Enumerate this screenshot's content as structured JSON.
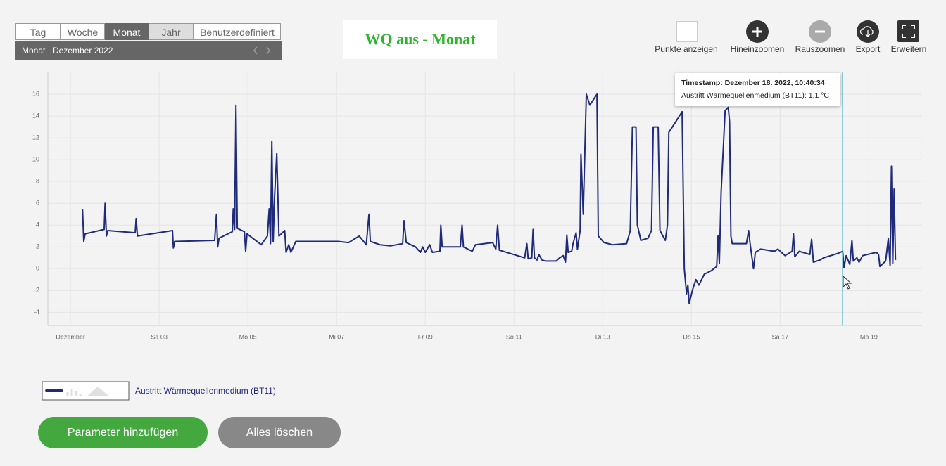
{
  "tabs": [
    "Tag",
    "Woche",
    "Monat",
    "Jahr",
    "Benutzerdefiniert"
  ],
  "period": {
    "label": "Monat",
    "value": "Dezember 2022"
  },
  "title": "WQ aus - Monat",
  "toolbar": [
    "Punkte anzeigen",
    "Hineinzoomen",
    "Rauszoomen",
    "Export",
    "Erweitern"
  ],
  "tooltip": {
    "timestamp": "Timestamp: Dezember 18. 2022, 10:40:34",
    "value": "Austritt Wärmequellenmedium (BT11): 1.1 °C"
  },
  "buttons": [
    "Parameter hinzufügen",
    "Alles löschen"
  ],
  "chart_data": {
    "type": "line",
    "grid": true,
    "xlim": [
      0.49,
      20.2
    ],
    "ylim": [
      -5.2,
      18
    ],
    "xticks": [
      {
        "value": 1,
        "label": "Dezember"
      },
      {
        "value": 3,
        "label": "Sa 03"
      },
      {
        "value": 5,
        "label": "Mo 05"
      },
      {
        "value": 7,
        "label": "Mi 07"
      },
      {
        "value": 9,
        "label": "Fr 09"
      },
      {
        "value": 11,
        "label": "So 11"
      },
      {
        "value": 13,
        "label": "Di 13"
      },
      {
        "value": 15,
        "label": "Do 15"
      },
      {
        "value": 17,
        "label": "Sa 17"
      },
      {
        "value": 19,
        "label": "Mo 19"
      }
    ],
    "yticks": [
      -4,
      -2,
      0,
      2,
      4,
      6,
      8,
      10,
      12,
      14,
      16
    ],
    "series": [
      {
        "name": "Austritt Wärmequellenmedium (BT11)",
        "color": "#1f2a7a",
        "x": [
          1.27,
          1.3,
          1.33,
          1.76,
          1.78,
          1.81,
          1.84,
          2.46,
          2.48,
          2.51,
          3.3,
          3.32,
          3.35,
          4.25,
          4.29,
          4.32,
          4.35,
          4.65,
          4.67,
          4.7,
          4.73,
          4.76,
          4.92,
          4.95,
          4.98,
          5.3,
          5.44,
          5.48,
          5.51,
          5.54,
          5.57,
          5.6,
          5.65,
          5.7,
          5.83,
          5.86,
          5.92,
          5.97,
          6.08,
          7.03,
          7.27,
          7.51,
          7.67,
          7.73,
          7.76,
          7.98,
          8.22,
          8.49,
          8.52,
          8.57,
          8.78,
          8.89,
          8.94,
          9.0,
          9.1,
          9.16,
          9.33,
          9.35,
          9.38,
          9.79,
          9.83,
          9.86,
          10.06,
          10.13,
          10.52,
          10.59,
          10.63,
          10.67,
          11.24,
          11.29,
          11.32,
          11.4,
          11.43,
          11.46,
          11.52,
          11.56,
          11.63,
          11.71,
          11.95,
          12.03,
          12.11,
          12.16,
          12.19,
          12.22,
          12.3,
          12.33,
          12.4,
          12.43,
          12.49,
          12.51,
          12.56,
          12.63,
          12.71,
          12.87,
          12.9,
          13.03,
          13.22,
          13.54,
          13.62,
          13.67,
          13.75,
          13.78,
          13.86,
          14.02,
          14.1,
          14.14,
          14.25,
          14.29,
          14.41,
          14.46,
          14.49,
          14.65,
          14.79,
          14.84,
          14.89,
          14.92,
          14.95,
          15.02,
          15.1,
          15.17,
          15.29,
          15.44,
          15.57,
          15.6,
          15.63,
          15.67,
          15.76,
          15.83,
          15.86,
          15.89,
          15.92,
          16.24,
          16.29,
          16.32,
          16.4,
          16.44,
          16.56,
          16.87,
          16.95,
          17.11,
          17.27,
          17.3,
          17.33,
          17.43,
          17.67,
          17.71,
          17.75,
          17.9,
          17.98,
          18.3,
          18.41,
          18.44,
          18.49,
          18.57,
          18.62,
          18.65,
          18.73,
          18.78,
          18.86,
          19.17,
          19.22,
          19.25,
          19.38,
          19.44,
          19.48,
          19.51,
          19.54,
          19.57,
          19.6
        ],
        "values": [
          5.5,
          2.5,
          3.2,
          3.6,
          6.0,
          3.0,
          3.5,
          3.3,
          4.6,
          3.0,
          3.5,
          1.9,
          2.5,
          2.6,
          5.0,
          2.0,
          2.8,
          3.4,
          5.5,
          3.6,
          15.0,
          3.7,
          3.4,
          1.6,
          3.2,
          2.2,
          3.0,
          5.5,
          2.3,
          11.7,
          2.5,
          6.5,
          10.6,
          3.0,
          3.5,
          1.5,
          2.2,
          1.5,
          2.5,
          2.5,
          2.4,
          3.0,
          2.2,
          5.0,
          2.5,
          2.2,
          2.1,
          2.3,
          4.4,
          2.4,
          2.0,
          1.5,
          2.0,
          1.5,
          2.2,
          1.5,
          1.6,
          4.0,
          2.0,
          2.0,
          4.0,
          2.0,
          1.6,
          2.2,
          2.4,
          1.8,
          4.0,
          1.7,
          1.0,
          2.3,
          0.9,
          1.0,
          3.6,
          1.0,
          0.8,
          1.3,
          0.8,
          0.7,
          0.7,
          1.0,
          1.2,
          0.6,
          3.1,
          1.5,
          1.6,
          2.3,
          3.3,
          1.8,
          3.5,
          10.5,
          5.0,
          16.0,
          15.0,
          16.0,
          3.0,
          2.4,
          2.2,
          2.3,
          3.5,
          13.0,
          13.0,
          4.0,
          2.6,
          2.8,
          3.5,
          13.0,
          13.0,
          3.5,
          2.6,
          4.0,
          12.5,
          13.5,
          14.4,
          0.0,
          -2.3,
          -1.5,
          -3.2,
          -2.0,
          -1.0,
          -1.5,
          -0.5,
          -0.2,
          0.2,
          3.0,
          0.5,
          7.0,
          14.5,
          14.8,
          13.5,
          3.0,
          2.3,
          2.3,
          3.5,
          2.4,
          0.0,
          1.5,
          1.8,
          1.6,
          1.8,
          1.2,
          1.6,
          3.2,
          1.1,
          1.6,
          1.3,
          2.7,
          0.6,
          0.8,
          1.0,
          1.4,
          1.6,
          0.1,
          1.2,
          0.4,
          2.6,
          0.7,
          1.0,
          0.6,
          1.2,
          1.5,
          1.3,
          0.2,
          0.7,
          2.8,
          0.3,
          9.4,
          0.5,
          7.3,
          0.8
        ]
      }
    ]
  }
}
